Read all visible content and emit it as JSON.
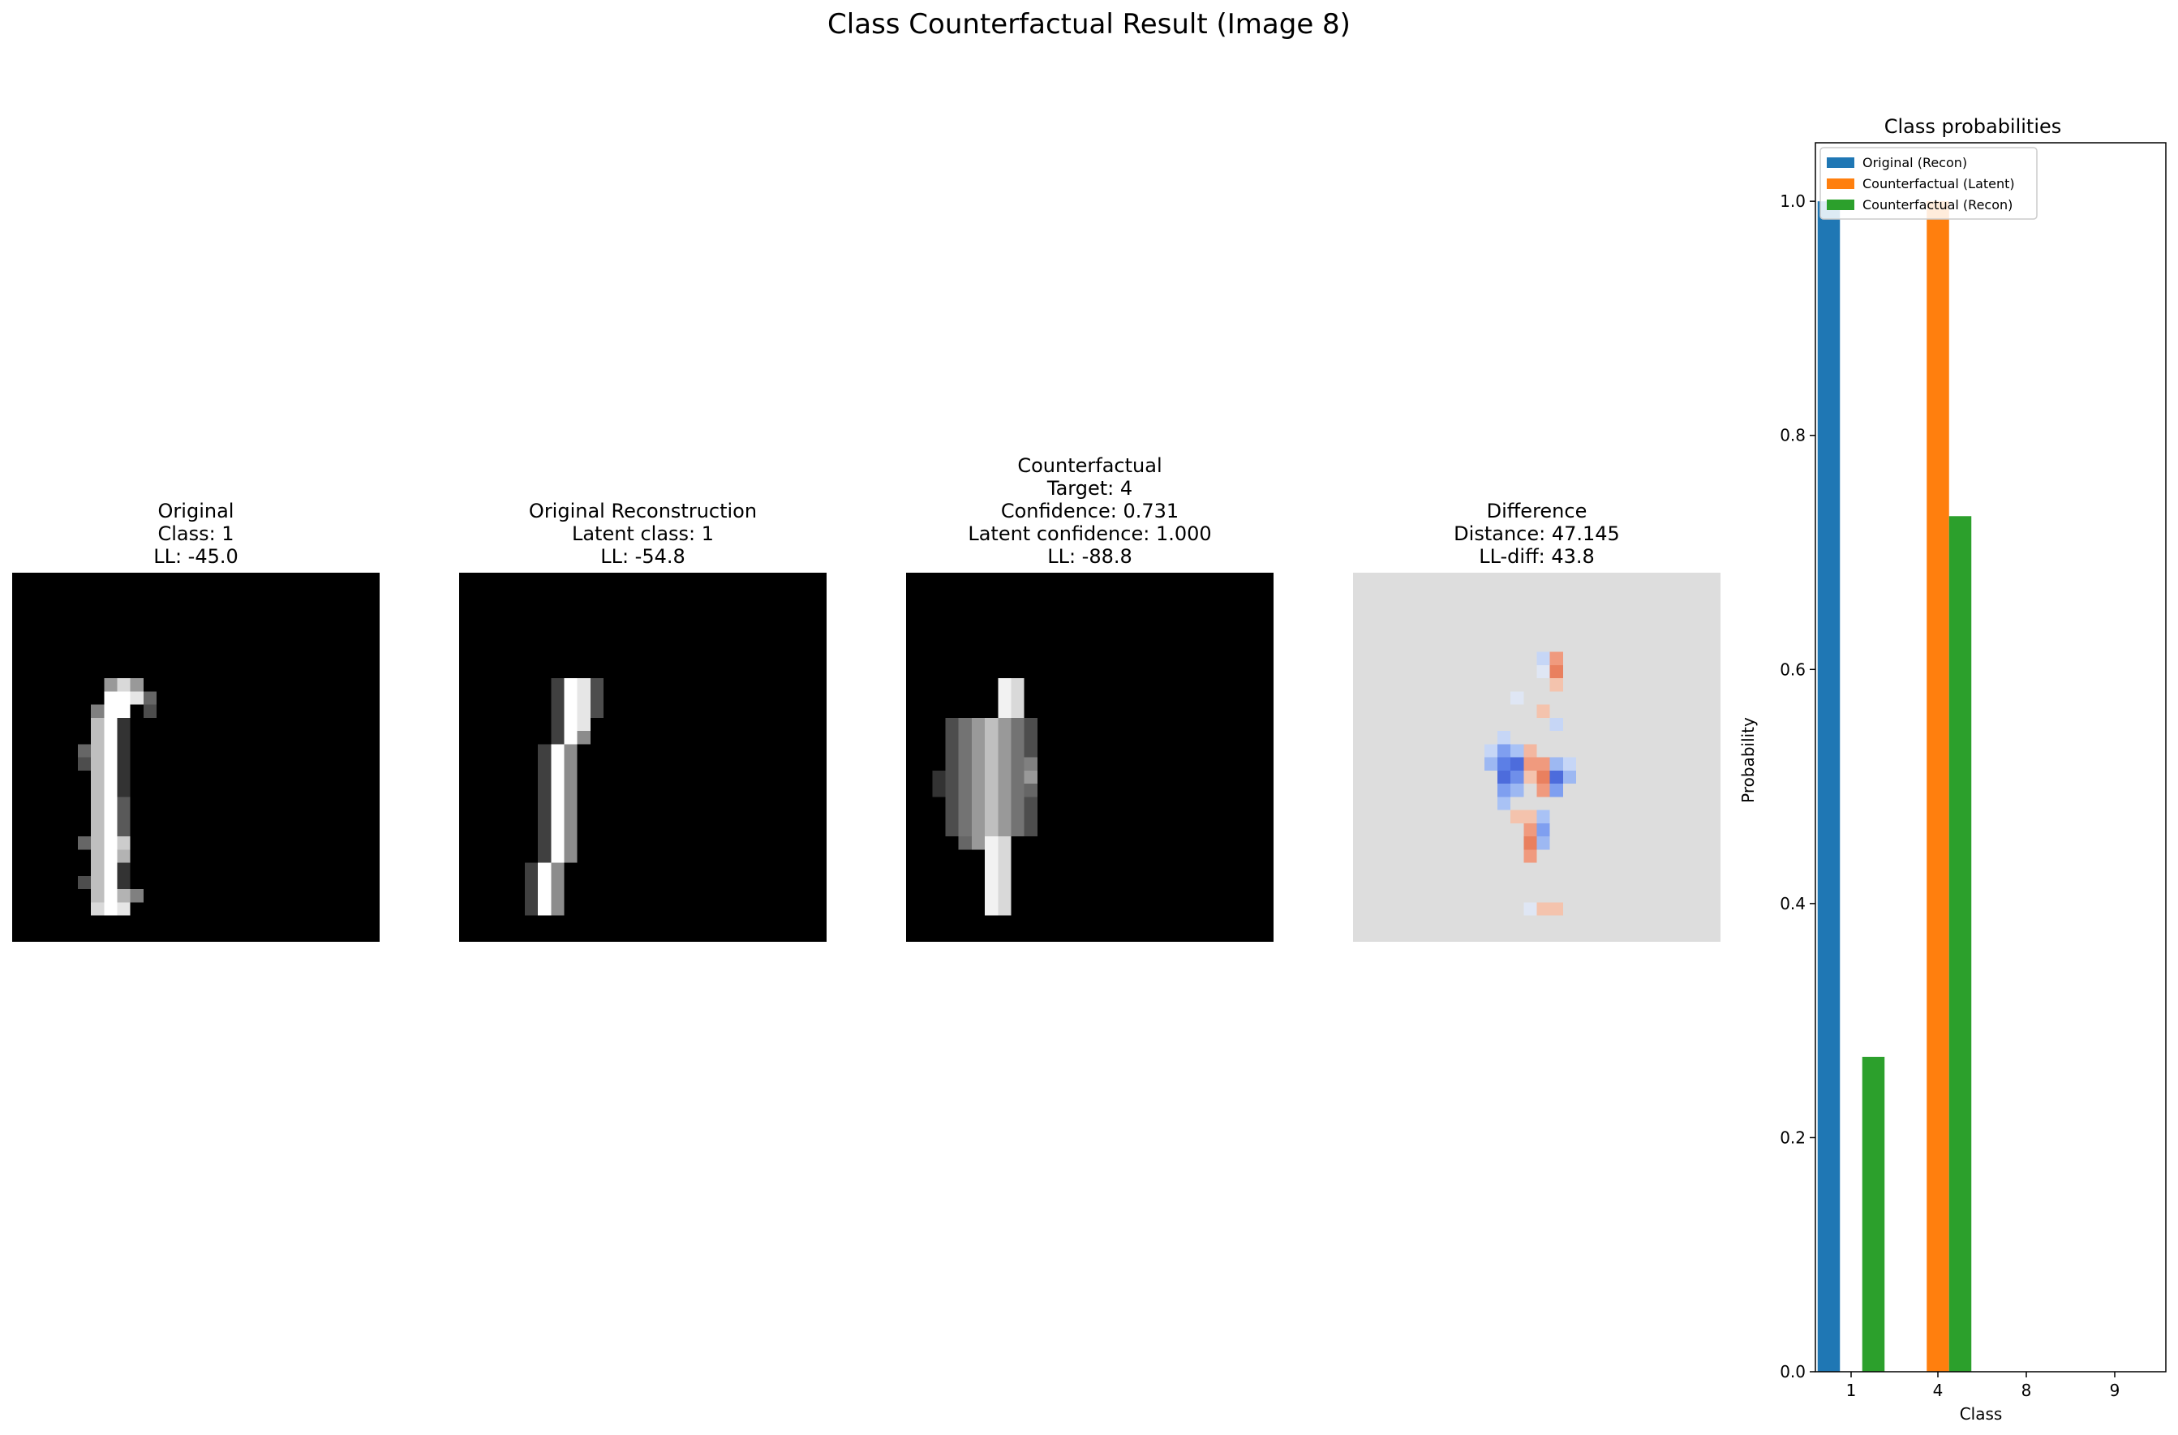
{
  "figure": {
    "title": "Class Counterfactual Result (Image 8)"
  },
  "panels": [
    {
      "id": "original",
      "lines": [
        "Original",
        "Class: 1",
        "LL: -45.0"
      ]
    },
    {
      "id": "reconstruction",
      "lines": [
        "Original Reconstruction",
        "Latent class: 1",
        "LL: -54.8"
      ]
    },
    {
      "id": "counterfactual",
      "lines": [
        "Counterfactual",
        "Target: 4",
        "Confidence: 0.731",
        "Latent confidence: 1.000",
        "LL: -88.8"
      ]
    },
    {
      "id": "difference",
      "lines": [
        "Difference",
        "Distance: 47.145",
        "LL-diff: 43.8"
      ]
    }
  ],
  "colors": {
    "original_recon": "#1f77b4",
    "cf_latent": "#ff7f0e",
    "cf_recon": "#2ca02c",
    "image_bg": "#000000",
    "diff_bg": "#dddddd"
  },
  "chart_data": {
    "type": "bar",
    "title": "Class probabilities",
    "xlabel": "Class",
    "ylabel": "Probability",
    "categories": [
      "1",
      "4",
      "8",
      "9"
    ],
    "series": [
      {
        "name": "Original (Recon)",
        "values": [
          1.0,
          0.0,
          0.0,
          0.0
        ]
      },
      {
        "name": "Counterfactual (Latent)",
        "values": [
          0.0,
          1.0,
          0.0,
          0.0
        ]
      },
      {
        "name": "Counterfactual (Recon)",
        "values": [
          0.269,
          0.731,
          0.0,
          0.0
        ]
      }
    ],
    "yticks": [
      "0.0",
      "0.2",
      "0.4",
      "0.6",
      "0.8",
      "1.0"
    ],
    "ylim": [
      0,
      1.05
    ],
    "legend": "upper-left"
  }
}
